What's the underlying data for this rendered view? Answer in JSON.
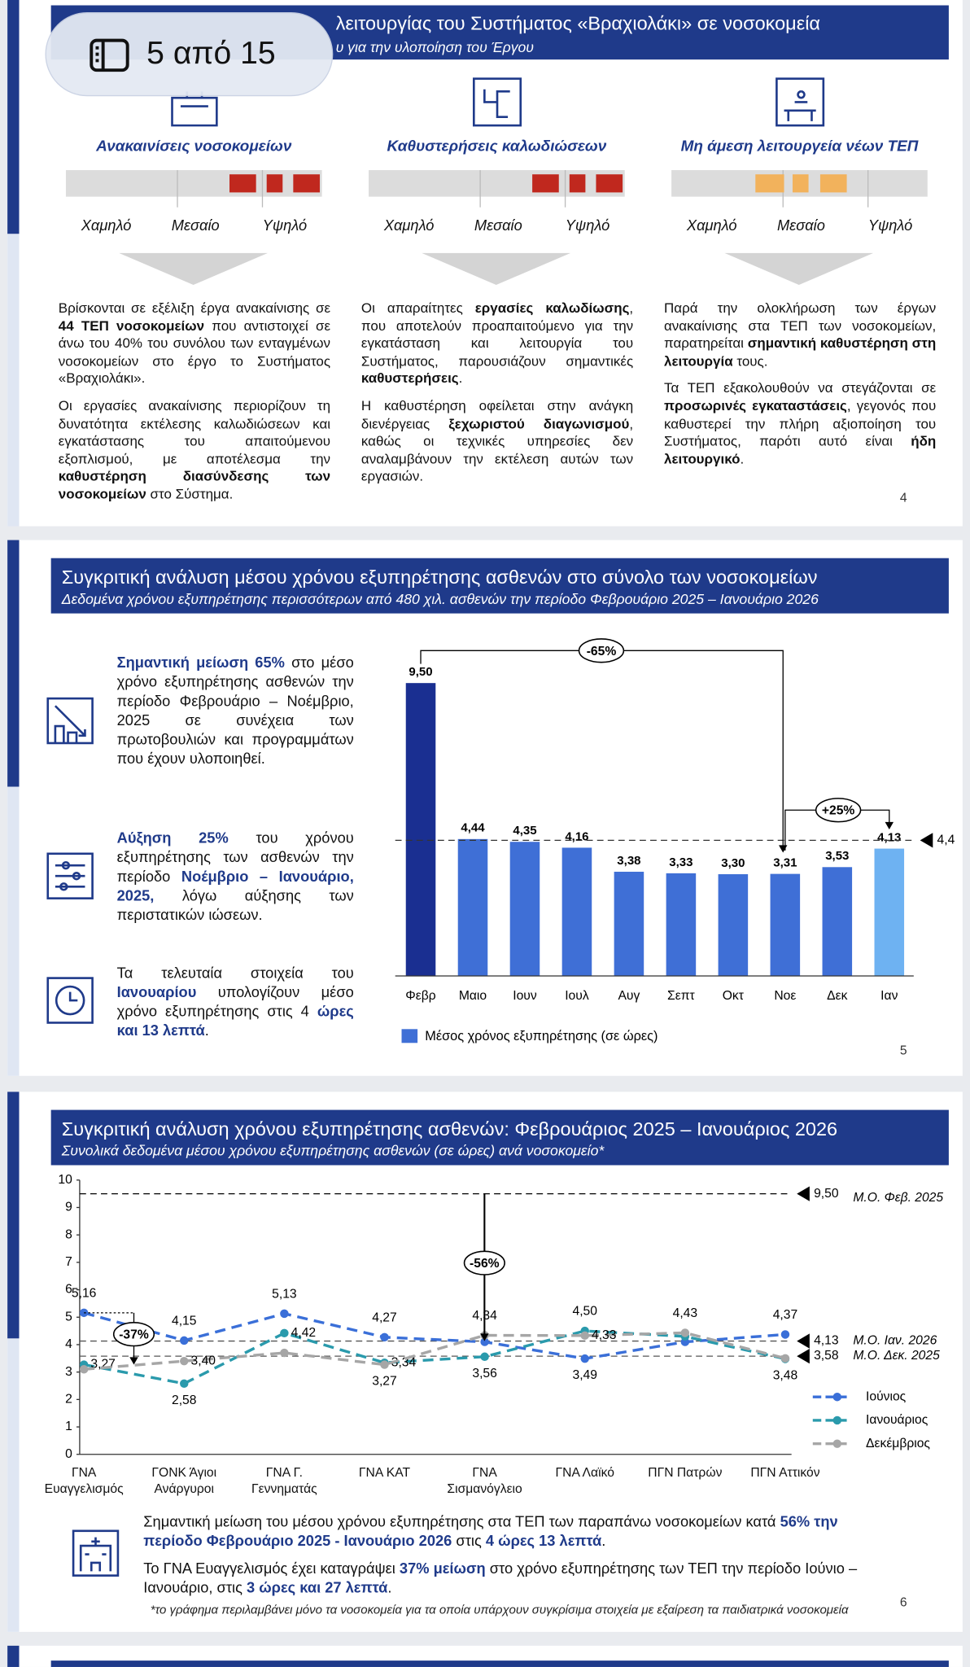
{
  "viewer_badge": {
    "label": "5 από 15"
  },
  "slide4": {
    "title": "λειτουργίας του Συστήματος «Βραχιολάκι» σε νοσοκομεία",
    "subtitle": "υ για την υλοποίηση του Έργου",
    "columns": [
      {
        "heading": "Ανακαινίσεις νοσοκομείων",
        "scale_labels": [
          "Χαμηλό",
          "Μεσαίο",
          "Υψηλό"
        ],
        "color": "#c0281e",
        "paragraphs": [
          [
            {
              "text": "Βρίσκονται σε εξέλιξη έργα ανακαίνισης σε "
            },
            {
              "text": "44 ΤΕΠ νοσοκομείων",
              "style": "bold"
            },
            {
              "text": " που αντιστοιχεί σε άνω του 40% του συνόλου των ενταγμένων νοσοκομείων στο έργο το Συστήματος «Βραχιολάκι»."
            }
          ],
          [
            {
              "text": "Οι εργασίες ανακαίνισης περιορίζουν τη δυνατότητα εκτέλεσης καλωδιώσεων και εγκατάστασης του απαιτούμενου εξοπλισμού, με αποτέλεσμα την "
            },
            {
              "text": "καθυστέρηση διασύνδεσης των νοσοκομείων",
              "style": "bold"
            },
            {
              "text": " στο Σύστημα."
            }
          ]
        ]
      },
      {
        "heading": "Καθυστερήσεις καλωδιώσεων",
        "scale_labels": [
          "Χαμηλό",
          "Μεσαίο",
          "Υψηλό"
        ],
        "color": "#c0281e",
        "paragraphs": [
          [
            {
              "text": "Οι απαραίτητες "
            },
            {
              "text": "εργασίες καλωδίωσης",
              "style": "bold"
            },
            {
              "text": ", που αποτελούν προαπαιτούμενο για την εγκατάσταση και λειτουργία του Συστήματος, παρουσιάζουν σημαντικές "
            },
            {
              "text": "καθυστερήσεις",
              "style": "bold"
            },
            {
              "text": "."
            }
          ],
          [
            {
              "text": "Η καθυστέρηση οφείλεται στην ανάγκη διενέργειας "
            },
            {
              "text": "ξεχωριστού διαγωνισμού",
              "style": "bold"
            },
            {
              "text": ", καθώς οι τεχνικές υπηρεσίες δεν αναλαμβάνουν την εκτέλεση αυτών των εργασιών."
            }
          ]
        ]
      },
      {
        "heading": "Μη άμεση λειτουργεία νέων ΤΕΠ",
        "scale_labels": [
          "Χαμηλό",
          "Μεσαίο",
          "Υψηλό"
        ],
        "color": "#f2b25c",
        "paragraphs": [
          [
            {
              "text": "Παρά την ολοκλήρωση των έργων ανακαίνισης στα ΤΕΠ των νοσοκομείων, παρατηρείται "
            },
            {
              "text": "σημαντική καθυστέρηση στη λειτουργία",
              "style": "bold"
            },
            {
              "text": " τους."
            }
          ],
          [
            {
              "text": "Τα ΤΕΠ εξακολουθούν να στεγάζονται σε "
            },
            {
              "text": "προσωρινές εγκαταστάσεις",
              "style": "bold"
            },
            {
              "text": ", γεγονός που καθυστερεί την πλήρη αξιοποίηση του Συστήματος, παρότι αυτό είναι "
            },
            {
              "text": "ήδη λειτουργικό",
              "style": "bold"
            },
            {
              "text": "."
            }
          ]
        ]
      }
    ],
    "page_number": "4"
  },
  "slide5": {
    "title": "Συγκριτική ανάλυση μέσου χρόνου εξυπηρέτησης ασθενών στο σύνολο των νοσοκομείων",
    "subtitle": "Δεδομένα χρόνου εξυπηρέτησης περισσότερων από 480 χιλ. ασθενών την περίοδο Φεβρουάριο 2025 – Ιανουάριο 2026",
    "notes": [
      [
        {
          "text": "Σημαντική μείωση 65%",
          "style": "blue"
        },
        {
          "text": " στο μέσο χρόνο εξυπηρέτησης ασθενών την περίοδο Φεβρουάριο – Νοέμβριο, 2025 σε συνέχεια των πρωτοβουλιών και προγραμμάτων που έχουν υλοποιηθεί."
        }
      ],
      [
        {
          "text": "Αύξηση 25%",
          "style": "blue"
        },
        {
          "text": " του χρόνου εξυπηρέτησης των ασθενών την περίοδο "
        },
        {
          "text": "Νοέμβριο – Ιανουάριο, 2025,",
          "style": "blue"
        },
        {
          "text": " λόγω αύξησης των περιστατικών ιώσεων."
        }
      ],
      [
        {
          "text": "Τα τελευταία στοιχεία του "
        },
        {
          "text": "Ιανουαρίου",
          "style": "blue"
        },
        {
          "text": " υπολογίζουν μέσο χρόνο εξυπηρέτησης στις 4 "
        },
        {
          "text": "ώρες και 13 λεπτά",
          "style": "blue"
        },
        {
          "text": "."
        }
      ]
    ],
    "chart": {
      "type": "bar",
      "categories": [
        "Φεβρ",
        "Μαιο",
        "Ιουν",
        "Ιουλ",
        "Αυγ",
        "Σεπτ",
        "Οκτ",
        "Νοε",
        "Δεκ",
        "Ιαν"
      ],
      "values": [
        9.5,
        4.44,
        4.35,
        4.16,
        3.38,
        3.33,
        3.3,
        3.31,
        3.53,
        4.13
      ],
      "value_labels": [
        "9,50",
        "4,44",
        "4,35",
        "4,16",
        "3,38",
        "3,33",
        "3,30",
        "3,31",
        "3,53",
        "4,13"
      ],
      "colors": [
        "#1a2f91",
        "#3f6fd6",
        "#3f6fd6",
        "#3f6fd6",
        "#3f6fd6",
        "#3f6fd6",
        "#3f6fd6",
        "#3f6fd6",
        "#3f6fd6",
        "#6eb2f2"
      ],
      "ylim": [
        0,
        10
      ],
      "legend": {
        "label": "Μέσος χρόνος εξυπηρέτησης (σε ώρες)",
        "color": "#3f6fd6"
      },
      "reference_line": {
        "value": 4.4,
        "label": "4,4"
      },
      "annotations": [
        {
          "text": "-65%"
        },
        {
          "text": "+25%"
        }
      ]
    },
    "page_number": "5"
  },
  "slide6": {
    "title": "Συγκριτική ανάλυση χρόνου εξυπηρέτησης ασθενών: Φεβρουάριος 2025 – Ιανουάριος 2026",
    "subtitle": "Συνολικά δεδομένα μέσου χρόνου εξυπηρέτησης ασθενών (σε ώρες) ανά νοσοκομείο*",
    "chart": {
      "type": "line",
      "categories": [
        "ΓΝΑ\nΕυαγγελισμός",
        "ΓΟΝΚ Άγιοι\nΑνάργυροι",
        "ΓΝΑ Γ.\nΓεννηματάς",
        "ΓΝΑ ΚΑΤ",
        "ΓΝΑ\nΣισμανόγλειο",
        "ΓΝΑ Λαϊκό",
        "ΠΓΝ Πατρών",
        "ΠΓΝ Αττικόν"
      ],
      "series": [
        {
          "name": "Ιούνιος",
          "color": "#3a6fd8",
          "values": [
            5.16,
            4.15,
            5.13,
            4.27,
            4.1,
            3.49,
            4.1,
            4.37
          ],
          "value_labels": [
            "5,16",
            "4,15",
            "5,13",
            "4,27",
            null,
            "3,49",
            null,
            "4,37"
          ]
        },
        {
          "name": "Ιανουάριος",
          "color": "#2a9aac",
          "values": [
            3.27,
            2.58,
            4.42,
            3.34,
            3.56,
            4.5,
            4.3,
            3.48
          ],
          "value_labels": [
            "3,27",
            "2,58",
            "4,42",
            "3,34",
            "3,56",
            "4,50",
            null,
            "3,48"
          ]
        },
        {
          "name": "Δεκέμβριος",
          "color": "#a6a6a6",
          "values": [
            3.1,
            3.4,
            3.7,
            3.27,
            4.34,
            4.33,
            4.43,
            3.5
          ],
          "value_labels": [
            null,
            "3,40",
            null,
            "3,27",
            "4,34",
            "4,33",
            "4,43",
            null
          ]
        }
      ],
      "ylim": [
        0,
        10
      ],
      "yticks": [
        0,
        1,
        2,
        3,
        4,
        5,
        6,
        7,
        8,
        9,
        10
      ],
      "reference_lines": [
        {
          "value": 9.5,
          "value_label": "9,50",
          "label": "Μ.Ο. Φεβ. 2025",
          "color": "#000000"
        },
        {
          "value": 4.13,
          "value_label": "4,13",
          "label": "Μ.Ο. Ιαν. 2026",
          "color": "#555555"
        },
        {
          "value": 3.58,
          "value_label": "3,58",
          "label": "Μ.Ο. Δεκ. 2025",
          "color": "#555555"
        }
      ],
      "annotations": [
        {
          "text": "-37%"
        },
        {
          "text": "-56%"
        }
      ]
    },
    "notes": [
      [
        {
          "text": "Σημαντική μείωση του μέσου χρόνου εξυπηρέτησης στα ΤΕΠ των παραπάνω νοσοκομείων κατά "
        },
        {
          "text": "56% την περίοδο Φεβρουάριο 2025 - Ιανουάριο 2026",
          "style": "blue"
        },
        {
          "text": " στις "
        },
        {
          "text": "4 ώρες 13 λεπτά",
          "style": "blue"
        },
        {
          "text": "."
        }
      ],
      [
        {
          "text": "Το ΓΝΑ Ευαγγελισμός έχει καταγράψει "
        },
        {
          "text": "37% μείωση",
          "style": "blue"
        },
        {
          "text": " στο χρόνο εξυπηρέτησης των ΤΕΠ την περίοδο Ιούνιο – Ιανουάριο, στις "
        },
        {
          "text": "3 ώρες και 27 λεπτά",
          "style": "blue"
        },
        {
          "text": "."
        }
      ]
    ],
    "footnote": "*το γράφημα περιλαμβάνει μόνο τα νοσοκομεία για τα οποία υπάρχουν συγκρίσιμα στοιχεία με εξαίρεση τα παιδιατρικά νοσοκομεία",
    "page_number": "6"
  }
}
